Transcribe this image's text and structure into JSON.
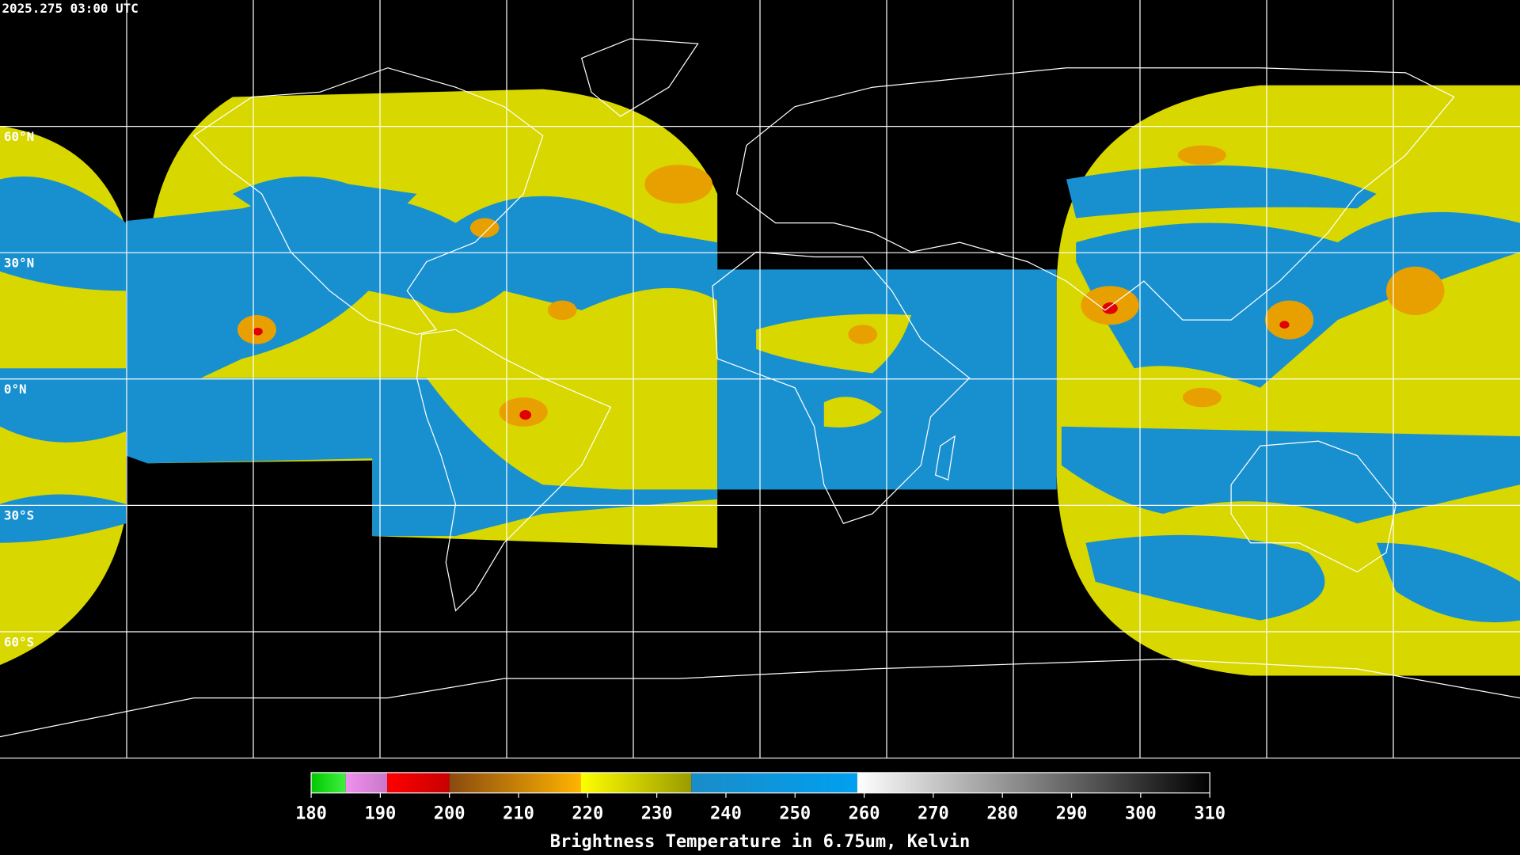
{
  "header": {
    "timestamp": "2025.275 03:00 UTC"
  },
  "map": {
    "xlim": [
      -180,
      180
    ],
    "ylim": [
      -90,
      90
    ],
    "lat_labels": [
      {
        "value": 60,
        "label": "60°N"
      },
      {
        "value": 30,
        "label": "30°N"
      },
      {
        "value": 0,
        "label": "0°N"
      },
      {
        "value": -30,
        "label": "30°S"
      },
      {
        "value": -60,
        "label": "60°S"
      }
    ],
    "lon_grid": [
      -150,
      -120,
      -90,
      -60,
      -30,
      0,
      30,
      60,
      90,
      120,
      150
    ]
  },
  "colorbar": {
    "title": "Brightness Temperature in 6.75um, Kelvin",
    "lim": [
      180,
      310
    ],
    "ticks": [
      180,
      190,
      200,
      210,
      220,
      230,
      240,
      250,
      260,
      270,
      280,
      290,
      300,
      310
    ],
    "segments": [
      {
        "from": 180,
        "to": 185,
        "colors": [
          "#00c800",
          "#40f040"
        ]
      },
      {
        "from": 185,
        "to": 191,
        "colors": [
          "#f090f0",
          "#c878c8"
        ]
      },
      {
        "from": 191,
        "to": 200,
        "colors": [
          "#ff0000",
          "#c80000"
        ]
      },
      {
        "from": 200,
        "to": 219,
        "colors": [
          "#8a4a10",
          "#ffb400"
        ]
      },
      {
        "from": 219,
        "to": 235,
        "colors": [
          "#ffff00",
          "#9a9a00"
        ]
      },
      {
        "from": 235,
        "to": 259,
        "colors": [
          "#1a8cc8",
          "#00a0f0"
        ]
      },
      {
        "from": 259,
        "to": 310,
        "colors": [
          "#ffffff",
          "#000000"
        ]
      }
    ]
  }
}
